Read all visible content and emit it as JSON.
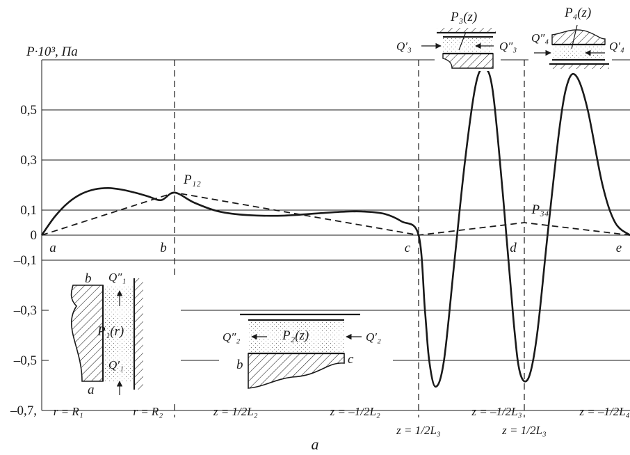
{
  "chart_data": {
    "type": "line",
    "ylabel": "P·10³, Па",
    "y_ticks": [
      {
        "value": 0.5,
        "label": "0,5"
      },
      {
        "value": 0.3,
        "label": "0,3"
      },
      {
        "value": 0.1,
        "label": "0,1"
      },
      {
        "value": 0,
        "label": "0"
      },
      {
        "value": -0.1,
        "label": "–0,1"
      },
      {
        "value": -0.3,
        "label": "–0,3"
      },
      {
        "value": -0.5,
        "label": "–0,5"
      },
      {
        "value": -0.7,
        "label": "–0,7,"
      }
    ],
    "ylim": [
      -0.7,
      0.7
    ],
    "grid": true,
    "section_points": [
      {
        "label": "a",
        "x": 0
      },
      {
        "label": "b",
        "x": 1
      },
      {
        "label": "c",
        "x": 2
      },
      {
        "label": "d",
        "x": 3
      },
      {
        "label": "e",
        "x": 4
      }
    ],
    "section_bounds": [
      {
        "text": "r = R₁",
        "x": 0.2
      },
      {
        "text": "r = R₂",
        "x": 0.8
      },
      {
        "text": "z = 1/2L₂",
        "x": 1.25
      },
      {
        "text": "z = –1/2L₂",
        "x": 1.74
      },
      {
        "text": "z = –1/2L₃",
        "x": 2.74
      },
      {
        "text": "z = –1/2L₄",
        "x": 3.76
      }
    ],
    "section_bounds_below": [
      {
        "text": "z = 1/2L₃",
        "x": 2.0
      },
      {
        "text": "z = 1/2L₃",
        "x": 3.0
      }
    ],
    "subfigure_label": "a",
    "series": [
      {
        "style": "solid",
        "points": [
          [
            0,
            0
          ],
          [
            0.1,
            0.075
          ],
          [
            0.2,
            0.13
          ],
          [
            0.3,
            0.165
          ],
          [
            0.4,
            0.183
          ],
          [
            0.5,
            0.188
          ],
          [
            0.6,
            0.182
          ],
          [
            0.7,
            0.17
          ],
          [
            0.8,
            0.155
          ],
          [
            0.9,
            0.14
          ],
          [
            1.0,
            0.17
          ],
          [
            1.08,
            0.13
          ],
          [
            1.18,
            0.095
          ],
          [
            1.3,
            0.08
          ],
          [
            1.45,
            0.078
          ],
          [
            1.6,
            0.088
          ],
          [
            1.7,
            0.094
          ],
          [
            1.78,
            0.094
          ],
          [
            1.86,
            0.085
          ],
          [
            1.93,
            0.055
          ],
          [
            2.0,
            0
          ],
          [
            2.06,
            -0.3
          ],
          [
            2.1,
            -0.5
          ],
          [
            2.16,
            -0.605
          ],
          [
            2.24,
            -0.5
          ],
          [
            2.34,
            -0.1
          ],
          [
            2.44,
            0.3
          ],
          [
            2.54,
            0.6
          ],
          [
            2.62,
            0.665
          ],
          [
            2.7,
            0.58
          ],
          [
            2.8,
            0.15
          ],
          [
            2.9,
            -0.35
          ],
          [
            2.96,
            -0.55
          ],
          [
            3.04,
            -0.57
          ],
          [
            3.12,
            -0.4
          ],
          [
            3.22,
            0.0
          ],
          [
            3.34,
            0.45
          ],
          [
            3.42,
            0.62
          ],
          [
            3.5,
            0.63
          ],
          [
            3.6,
            0.5
          ],
          [
            3.74,
            0.2
          ],
          [
            3.86,
            0.05
          ],
          [
            4.0,
            0
          ]
        ]
      },
      {
        "style": "dashed",
        "points": [
          [
            0,
            0
          ],
          [
            1,
            0.17
          ],
          [
            2,
            0
          ],
          [
            3,
            0.05
          ],
          [
            4,
            0
          ]
        ]
      }
    ],
    "annotations": [
      {
        "text": "P₁₂",
        "x": 1.02,
        "y": 0.195
      },
      {
        "text": "P₃₄",
        "x": 3.03,
        "y": 0.075
      }
    ],
    "insets": [
      {
        "name": "section-ab",
        "labels": [
          "b",
          "Q″₁",
          "P₁(r)",
          "Q′₁",
          "a"
        ]
      },
      {
        "name": "section-bc",
        "labels": [
          "Q″₂",
          "P₂(z)",
          "Q′₂",
          "b",
          "c"
        ]
      },
      {
        "name": "section-cd",
        "labels": [
          "P₃(z)",
          "Q′₃",
          "Q″₃"
        ]
      },
      {
        "name": "section-de",
        "labels": [
          "P₄(z)",
          "Q″₄",
          "Q′₄"
        ]
      }
    ]
  }
}
